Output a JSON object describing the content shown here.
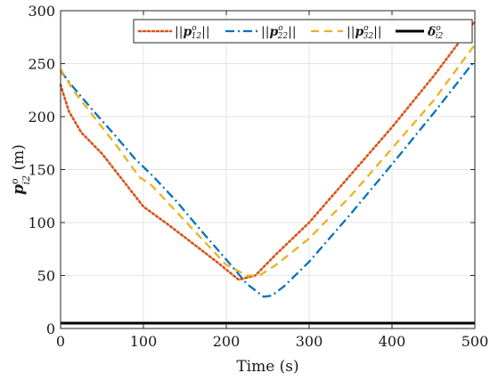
{
  "chart_data": {
    "type": "line",
    "title": "",
    "xlabel": "Time (s)",
    "ylabel_parts": {
      "base": "p",
      "sup": "o",
      "sub": "i2",
      "unit": " (m)"
    },
    "xlim": [
      0,
      500
    ],
    "ylim": [
      0,
      300
    ],
    "xticks": [
      0,
      100,
      200,
      300,
      400,
      500
    ],
    "yticks": [
      0,
      50,
      100,
      150,
      200,
      250,
      300
    ],
    "grid": true,
    "legend_position": "top-right",
    "series": [
      {
        "name_parts": {
          "pre": "||",
          "base": "p",
          "sup": "o",
          "sub": "12",
          "post": "||"
        },
        "color": "#D95319",
        "style": "dotted",
        "x": [
          0,
          10,
          25,
          50,
          75,
          90,
          100,
          130,
          160,
          190,
          215,
          235,
          260,
          300,
          350,
          400,
          450,
          500
        ],
        "y": [
          230,
          205,
          185,
          165,
          140,
          125,
          115,
          98,
          80,
          62,
          46,
          50,
          70,
          100,
          145,
          190,
          238,
          290
        ]
      },
      {
        "name_parts": {
          "pre": "||",
          "base": "p",
          "sup": "o",
          "sub": "22",
          "post": "||"
        },
        "color": "#0072BD",
        "style": "dashdot",
        "x": [
          0,
          15,
          40,
          65,
          90,
          110,
          140,
          170,
          200,
          225,
          245,
          255,
          270,
          300,
          350,
          400,
          450,
          500
        ],
        "y": [
          243,
          228,
          205,
          183,
          160,
          145,
          120,
          92,
          65,
          42,
          30,
          31,
          40,
          63,
          108,
          155,
          203,
          253
        ]
      },
      {
        "name_parts": {
          "pre": "||",
          "base": "p",
          "sup": "o",
          "sub": "32",
          "post": "||"
        },
        "color": "#EDB120",
        "style": "dashed",
        "x": [
          0,
          15,
          40,
          70,
          95,
          110,
          140,
          170,
          200,
          225,
          240,
          260,
          300,
          350,
          400,
          450,
          500
        ],
        "y": [
          245,
          225,
          200,
          170,
          143,
          135,
          110,
          85,
          60,
          50,
          50,
          60,
          85,
          125,
          170,
          215,
          268
        ]
      },
      {
        "name_parts": {
          "pre": "",
          "base": "δ",
          "sup": "o",
          "sub": "i2",
          "post": ""
        },
        "color": "#000000",
        "style": "solid",
        "x": [
          0,
          500
        ],
        "y": [
          5,
          5
        ]
      }
    ]
  }
}
